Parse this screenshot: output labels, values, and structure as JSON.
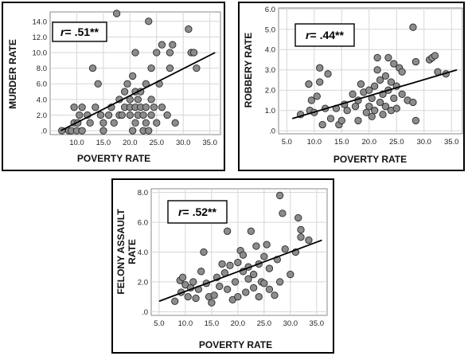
{
  "chart_data": [
    {
      "type": "scatter",
      "xlabel": "POVERTY RATE",
      "ylabel": "MURDER RATE",
      "annotation": "r= .51**",
      "xlim": [
        5.0,
        37.0
      ],
      "ylim": [
        -0.5,
        15.2
      ],
      "xticks": [
        10.0,
        15.0,
        20.0,
        25.0,
        30.0,
        35.0
      ],
      "xtick_labels": [
        "10.0",
        "15.0",
        "20.0",
        "25.0",
        "30.0",
        "35.0"
      ],
      "yticks": [
        0,
        2,
        4,
        6,
        8,
        10,
        12,
        14
      ],
      "ytick_labels": [
        ".0",
        "2.0",
        "4.0",
        "6.0",
        "8.0",
        "10.0",
        "12.0",
        "14.0"
      ],
      "grid": true,
      "fit_line": {
        "x": [
          7.0,
          36.0
        ],
        "y": [
          0.0,
          10.0
        ]
      },
      "points": [
        [
          7.2,
          0
        ],
        [
          8.5,
          0
        ],
        [
          9.0,
          0
        ],
        [
          9.5,
          1
        ],
        [
          9.5,
          3
        ],
        [
          10.0,
          0
        ],
        [
          10.2,
          1
        ],
        [
          10.5,
          2
        ],
        [
          11.0,
          0
        ],
        [
          11.0,
          3
        ],
        [
          12.0,
          2
        ],
        [
          12.5,
          1
        ],
        [
          13.0,
          8
        ],
        [
          13.5,
          3
        ],
        [
          14.0,
          6
        ],
        [
          14.5,
          2
        ],
        [
          15.0,
          0
        ],
        [
          15.0,
          1
        ],
        [
          16.0,
          2
        ],
        [
          16.5,
          3
        ],
        [
          17.0,
          1
        ],
        [
          17.5,
          15
        ],
        [
          18.0,
          2
        ],
        [
          18.0,
          4
        ],
        [
          18.5,
          2
        ],
        [
          19.0,
          3
        ],
        [
          19.0,
          5
        ],
        [
          19.5,
          6
        ],
        [
          20.0,
          2
        ],
        [
          20.0,
          3
        ],
        [
          20.0,
          4
        ],
        [
          20.5,
          0
        ],
        [
          20.5,
          7
        ],
        [
          21.0,
          1
        ],
        [
          21.0,
          3
        ],
        [
          21.0,
          5
        ],
        [
          21.0,
          10
        ],
        [
          21.5,
          2
        ],
        [
          21.5,
          4
        ],
        [
          22.0,
          3
        ],
        [
          22.0,
          5
        ],
        [
          22.5,
          0
        ],
        [
          22.5,
          2
        ],
        [
          23.0,
          1
        ],
        [
          23.0,
          3
        ],
        [
          23.0,
          6
        ],
        [
          23.5,
          14
        ],
        [
          23.5,
          0
        ],
        [
          24.0,
          2
        ],
        [
          24.0,
          4
        ],
        [
          24.0,
          8
        ],
        [
          24.5,
          3
        ],
        [
          25.0,
          10
        ],
        [
          25.0,
          1
        ],
        [
          25.5,
          6
        ],
        [
          26.0,
          11
        ],
        [
          26.0,
          3
        ],
        [
          27.0,
          2
        ],
        [
          27.5,
          10
        ],
        [
          27.5,
          8
        ],
        [
          28.0,
          11
        ],
        [
          28.5,
          1
        ],
        [
          31.0,
          13
        ],
        [
          31.5,
          10
        ],
        [
          32.0,
          10
        ],
        [
          32.5,
          8
        ]
      ]
    },
    {
      "type": "scatter",
      "xlabel": "POVERTY RATE",
      "ylabel": "ROBBERY RATE",
      "annotation": "r= .44**",
      "xlim": [
        3.5,
        37.0
      ],
      "ylim": [
        -0.15,
        6.05
      ],
      "xticks": [
        5.0,
        10.0,
        15.0,
        20.0,
        25.0,
        30.0,
        35.0
      ],
      "xtick_labels": [
        "5.0",
        "10.0",
        "15.0",
        "20.0",
        "25.0",
        "30.0",
        "35.0"
      ],
      "yticks": [
        0,
        1,
        2,
        3,
        4,
        5,
        6
      ],
      "ytick_labels": [
        ".0",
        "1.0",
        "2.0",
        "3.0",
        "4.0",
        "5.0",
        "6.0"
      ],
      "grid": true,
      "fit_line": {
        "x": [
          6.0,
          36.0
        ],
        "y": [
          0.6,
          3.0
        ]
      },
      "points": [
        [
          7.5,
          0.8
        ],
        [
          9.0,
          2.3
        ],
        [
          9.2,
          1.0
        ],
        [
          9.5,
          1.5
        ],
        [
          10.0,
          0.9
        ],
        [
          10.5,
          1.7
        ],
        [
          11.0,
          3.1
        ],
        [
          11.0,
          2.4
        ],
        [
          11.5,
          0.3
        ],
        [
          12.0,
          1.1
        ],
        [
          12.5,
          2.8
        ],
        [
          13.0,
          0.6
        ],
        [
          14.0,
          1.1
        ],
        [
          14.5,
          0.3
        ],
        [
          15.0,
          0.5
        ],
        [
          15.5,
          1.3
        ],
        [
          16.0,
          1.0
        ],
        [
          17.0,
          1.8
        ],
        [
          17.5,
          1.2
        ],
        [
          18.0,
          0.5
        ],
        [
          18.0,
          1.5
        ],
        [
          18.5,
          2.3
        ],
        [
          19.0,
          1.9
        ],
        [
          19.5,
          0.9
        ],
        [
          20.0,
          1.2
        ],
        [
          20.0,
          2.0
        ],
        [
          20.5,
          0.7
        ],
        [
          20.5,
          1.6
        ],
        [
          21.0,
          2.2
        ],
        [
          21.0,
          1.0
        ],
        [
          21.5,
          3.0
        ],
        [
          21.5,
          3.6
        ],
        [
          22.0,
          1.4
        ],
        [
          22.0,
          2.5
        ],
        [
          22.5,
          0.8
        ],
        [
          22.5,
          1.8
        ],
        [
          23.0,
          1.2
        ],
        [
          23.0,
          2.7
        ],
        [
          23.5,
          3.6
        ],
        [
          23.5,
          2.0
        ],
        [
          24.0,
          1.0
        ],
        [
          24.0,
          2.4
        ],
        [
          24.5,
          3.3
        ],
        [
          24.5,
          1.6
        ],
        [
          25.0,
          2.2
        ],
        [
          25.0,
          1.1
        ],
        [
          25.5,
          3.1
        ],
        [
          26.0,
          1.8
        ],
        [
          26.0,
          2.9
        ],
        [
          27.0,
          1.5
        ],
        [
          28.0,
          5.1
        ],
        [
          28.0,
          1.4
        ],
        [
          28.5,
          3.4
        ],
        [
          28.5,
          0.5
        ],
        [
          31.0,
          3.5
        ],
        [
          31.5,
          3.6
        ],
        [
          32.0,
          3.7
        ],
        [
          32.5,
          2.9
        ],
        [
          34.0,
          2.8
        ]
      ]
    },
    {
      "type": "scatter",
      "xlabel": "POVERTY RATE",
      "ylabel": "FELONY ASSAULT RATE",
      "annotation": "r= .52**",
      "xlim": [
        3.5,
        37.0
      ],
      "ylim": [
        -0.25,
        8.25
      ],
      "xticks": [
        5.0,
        10.0,
        15.0,
        20.0,
        25.0,
        30.0,
        35.0
      ],
      "xtick_labels": [
        "5.0",
        "10.0",
        "15.0",
        "20.0",
        "25.0",
        "30.0",
        "35.0"
      ],
      "yticks": [
        0,
        2,
        4,
        6,
        8
      ],
      "ytick_labels": [
        ".0",
        "2.0",
        "4.0",
        "6.0",
        "8.0"
      ],
      "grid": true,
      "fit_line": {
        "x": [
          5.0,
          36.0
        ],
        "y": [
          0.7,
          4.8
        ]
      },
      "points": [
        [
          8.0,
          0.7
        ],
        [
          9.0,
          2.1
        ],
        [
          9.2,
          1.3
        ],
        [
          9.5,
          2.3
        ],
        [
          10.0,
          1.8
        ],
        [
          10.5,
          1.0
        ],
        [
          11.0,
          1.6
        ],
        [
          11.5,
          2.0
        ],
        [
          12.0,
          0.9
        ],
        [
          12.5,
          1.5
        ],
        [
          13.0,
          2.7
        ],
        [
          13.5,
          4.0
        ],
        [
          14.0,
          1.9
        ],
        [
          14.5,
          1.0
        ],
        [
          15.0,
          0.6
        ],
        [
          15.5,
          1.1
        ],
        [
          16.0,
          2.3
        ],
        [
          16.5,
          1.7
        ],
        [
          17.0,
          3.2
        ],
        [
          17.5,
          2.6
        ],
        [
          18.0,
          5.4
        ],
        [
          18.0,
          1.5
        ],
        [
          18.5,
          3.1
        ],
        [
          19.0,
          0.8
        ],
        [
          19.5,
          2.0
        ],
        [
          20.0,
          3.3
        ],
        [
          20.0,
          1.0
        ],
        [
          20.5,
          4.1
        ],
        [
          21.0,
          2.7
        ],
        [
          21.0,
          3.8
        ],
        [
          21.5,
          1.3
        ],
        [
          22.0,
          2.2
        ],
        [
          22.0,
          3.0
        ],
        [
          22.5,
          5.4
        ],
        [
          23.0,
          1.6
        ],
        [
          23.0,
          2.5
        ],
        [
          23.5,
          4.4
        ],
        [
          24.0,
          1.0
        ],
        [
          24.0,
          3.2
        ],
        [
          24.5,
          2.0
        ],
        [
          25.0,
          3.7
        ],
        [
          25.0,
          1.9
        ],
        [
          25.5,
          4.5
        ],
        [
          26.0,
          1.5
        ],
        [
          26.0,
          2.9
        ],
        [
          27.0,
          1.1
        ],
        [
          27.5,
          3.5
        ],
        [
          28.0,
          7.8
        ],
        [
          28.0,
          2.0
        ],
        [
          28.5,
          6.6
        ],
        [
          29.0,
          4.2
        ],
        [
          30.0,
          2.5
        ],
        [
          31.0,
          4.0
        ],
        [
          31.5,
          6.3
        ],
        [
          32.0,
          5.5
        ],
        [
          32.0,
          5.0
        ],
        [
          33.5,
          4.8
        ]
      ]
    }
  ]
}
